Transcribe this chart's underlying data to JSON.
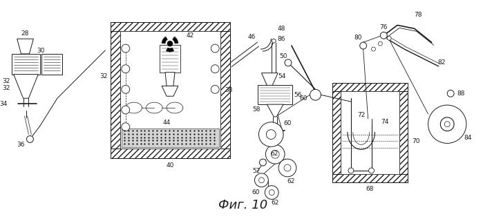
{
  "title": "Фиг. 10",
  "bg": "#ffffff",
  "lc": "#1a1a1a",
  "fig_w": 6.99,
  "fig_h": 3.17,
  "dpi": 100
}
